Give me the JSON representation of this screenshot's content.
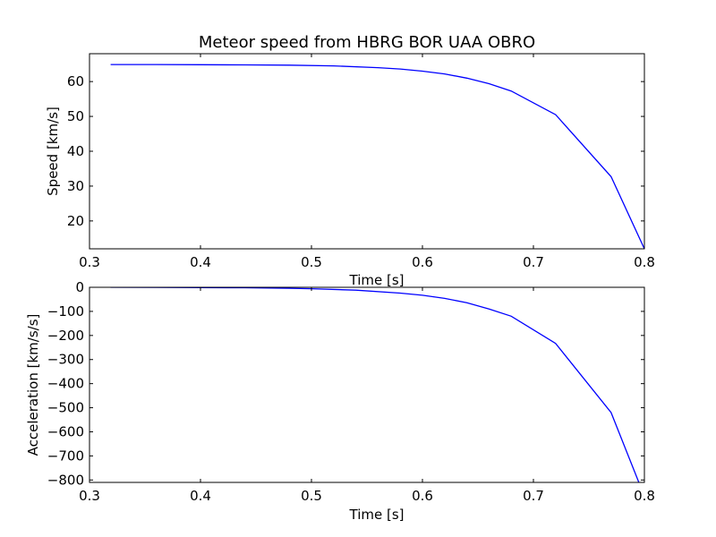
{
  "title": "Meteor speed from  HBRG BOR UAA OBRO",
  "chart_data": [
    {
      "type": "line",
      "xlabel": "Time [s]",
      "ylabel": "Speed [km/s]",
      "xlim": [
        0.3,
        0.8
      ],
      "ylim": [
        12,
        68
      ],
      "xticks": [
        "0.3",
        "0.4",
        "0.5",
        "0.6",
        "0.7",
        "0.8"
      ],
      "yticks": [
        "20",
        "30",
        "40",
        "50",
        "60"
      ],
      "color": "#0000ff",
      "series": [
        {
          "x": [
            0.319,
            0.36,
            0.4,
            0.44,
            0.48,
            0.52,
            0.56,
            0.58,
            0.6,
            0.62,
            0.64,
            0.66,
            0.68,
            0.72,
            0.77,
            0.8
          ],
          "y": [
            64.9,
            64.9,
            64.85,
            64.8,
            64.7,
            64.5,
            64.0,
            63.6,
            63.0,
            62.2,
            61.0,
            59.4,
            57.3,
            50.5,
            32.7,
            12.0
          ]
        }
      ]
    },
    {
      "type": "line",
      "xlabel": "Time [s]",
      "ylabel": "Acceleration [km/s/s]",
      "xlim": [
        0.3,
        0.8
      ],
      "ylim": [
        -810,
        0
      ],
      "xticks": [
        "0.3",
        "0.4",
        "0.5",
        "0.6",
        "0.7",
        "0.8"
      ],
      "yticks": [
        "0",
        "−100",
        "−200",
        "−300",
        "−400",
        "−500",
        "−600",
        "−700",
        "−800"
      ],
      "color": "#0000ff",
      "series": [
        {
          "x": [
            0.319,
            0.36,
            0.4,
            0.44,
            0.48,
            0.5,
            0.54,
            0.58,
            0.6,
            0.62,
            0.64,
            0.66,
            0.68,
            0.72,
            0.77,
            0.795
          ],
          "y": [
            0,
            -0.3,
            -1,
            -2,
            -4,
            -6,
            -12,
            -24,
            -33,
            -46,
            -64,
            -90,
            -120,
            -233,
            -520,
            -810
          ]
        }
      ]
    }
  ]
}
